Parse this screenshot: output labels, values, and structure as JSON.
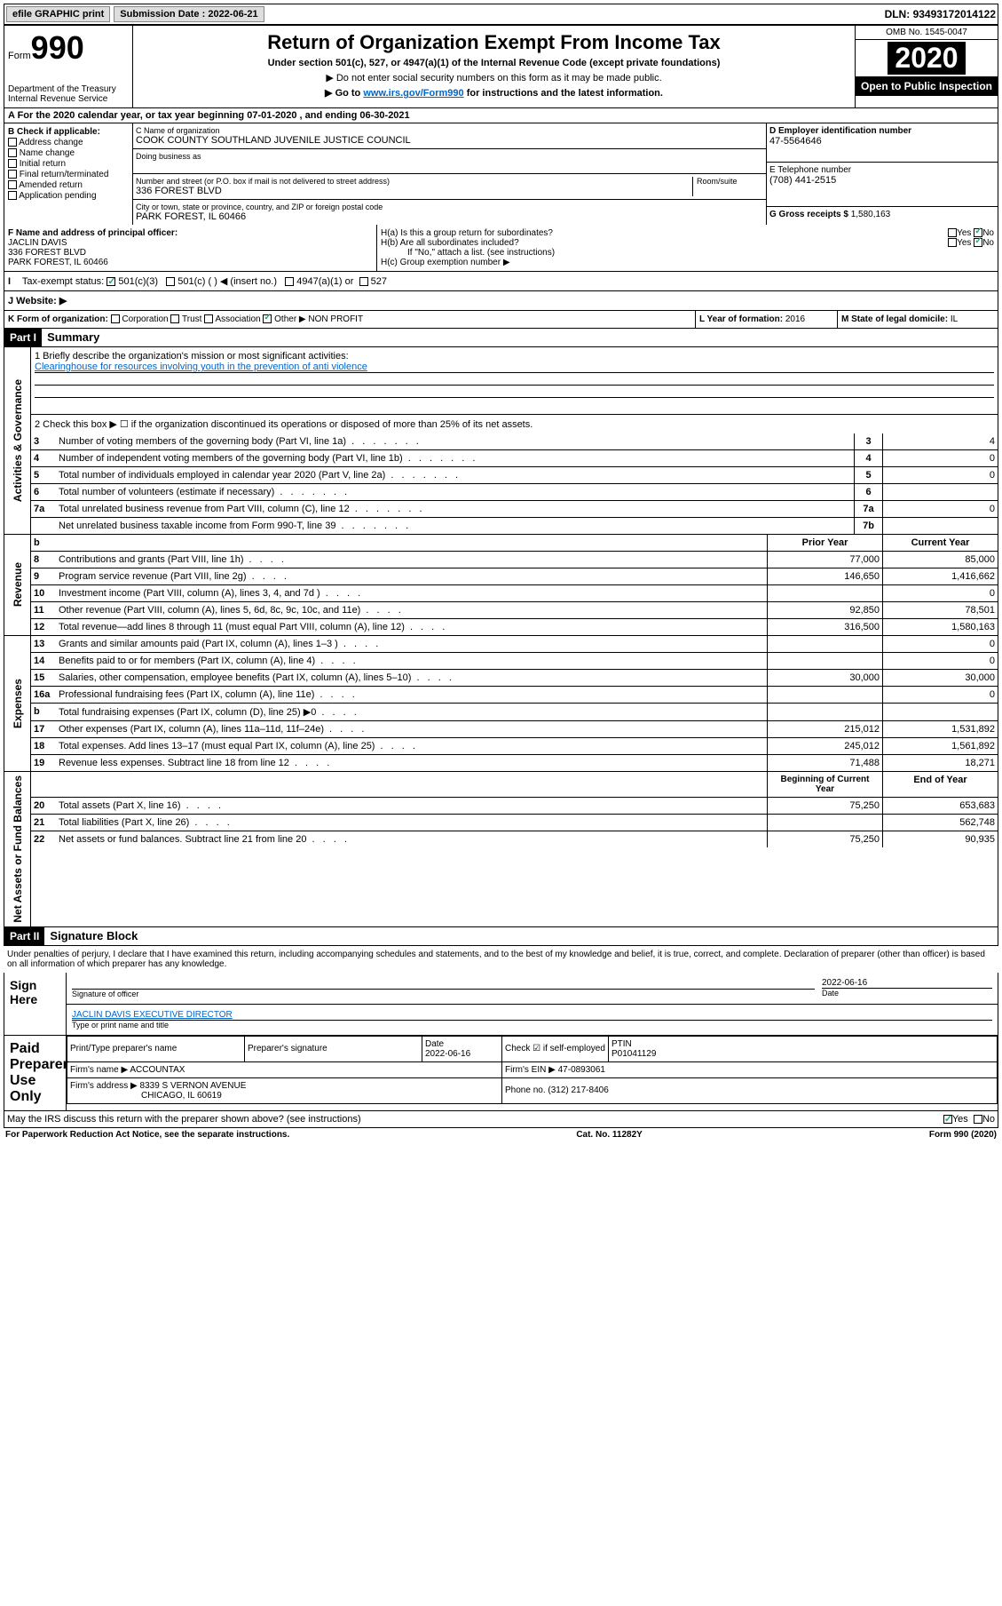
{
  "topbar": {
    "efile": "efile GRAPHIC print",
    "subdate_lbl": "Submission Date : ",
    "subdate": "2022-06-21",
    "dln_lbl": "DLN: ",
    "dln": "93493172014122"
  },
  "header": {
    "form_word": "Form",
    "form_num": "990",
    "dept": "Department of the Treasury\nInternal Revenue Service",
    "title": "Return of Organization Exempt From Income Tax",
    "sub1": "Under section 501(c), 527, or 4947(a)(1) of the Internal Revenue Code (except private foundations)",
    "sub2": "▶ Do not enter social security numbers on this form as it may be made public.",
    "sub3_pre": "▶ Go to ",
    "sub3_link": "www.irs.gov/Form990",
    "sub3_post": " for instructions and the latest information.",
    "omb": "OMB No. 1545-0047",
    "year": "2020",
    "inspect": "Open to Public Inspection"
  },
  "period": {
    "text_a": "A For the 2020 calendar year, or tax year beginning ",
    "begin": "07-01-2020",
    "text_b": " , and ending ",
    "end": "06-30-2021"
  },
  "boxB": {
    "label": "B Check if applicable:",
    "items": [
      "Address change",
      "Name change",
      "Initial return",
      "Final return/terminated",
      "Amended return",
      "Application pending"
    ]
  },
  "boxC": {
    "name_lbl": "C Name of organization",
    "name": "COOK COUNTY SOUTHLAND JUVENILE JUSTICE COUNCIL",
    "dba_lbl": "Doing business as",
    "street_lbl": "Number and street (or P.O. box if mail is not delivered to street address)",
    "room_lbl": "Room/suite",
    "street": "336 FOREST BLVD",
    "city_lbl": "City or town, state or province, country, and ZIP or foreign postal code",
    "city": "PARK FOREST, IL  60466"
  },
  "boxD": {
    "lbl": "D Employer identification number",
    "val": "47-5564646"
  },
  "boxE": {
    "lbl": "E Telephone number",
    "val": "(708) 441-2515"
  },
  "boxG": {
    "lbl": "G Gross receipts $ ",
    "val": "1,580,163"
  },
  "boxF": {
    "lbl": "F Name and address of principal officer:",
    "name": "JACLIN DAVIS",
    "addr1": "336 FOREST BLVD",
    "addr2": "PARK FOREST, IL  60466"
  },
  "boxH": {
    "ha": "H(a)  Is this a group return for subordinates?",
    "hb": "H(b)  Are all subordinates included?",
    "hb_note": "If \"No,\" attach a list. (see instructions)",
    "hc": "H(c)  Group exemption number ▶",
    "yes": "Yes",
    "no": "No"
  },
  "boxI": {
    "lbl": "Tax-exempt status:",
    "opt1": "501(c)(3)",
    "opt2": "501(c) (  ) ◀ (insert no.)",
    "opt3": "4947(a)(1) or",
    "opt4": "527"
  },
  "boxJ": {
    "lbl": "J   Website: ▶"
  },
  "boxK": {
    "lbl": "K Form of organization:",
    "corp": "Corporation",
    "trust": "Trust",
    "assoc": "Association",
    "other": "Other ▶",
    "other_val": "NON PROFIT"
  },
  "boxL": {
    "lbl": "L Year of formation: ",
    "val": "2016"
  },
  "boxM": {
    "lbl": "M State of legal domicile: ",
    "val": "IL"
  },
  "part1": {
    "hdr": "Part I",
    "title": "Summary",
    "line1_lbl": "1   Briefly describe the organization's mission or most significant activities:",
    "line1_val": "Clearinghouse for resources involving youth in the prevention of anti violence",
    "line2": "2   Check this box ▶ ☐  if the organization discontinued its operations or disposed of more than 25% of its net assets.",
    "vert_gov": "Activities & Governance",
    "vert_rev": "Revenue",
    "vert_exp": "Expenses",
    "vert_net": "Net Assets or Fund Balances",
    "prior_hdr": "Prior Year",
    "current_hdr": "Current Year",
    "begin_hdr": "Beginning of Current Year",
    "end_hdr": "End of Year",
    "rows_gov": [
      {
        "n": "3",
        "d": "Number of voting members of the governing body (Part VI, line 1a)",
        "box": "3",
        "v": "4"
      },
      {
        "n": "4",
        "d": "Number of independent voting members of the governing body (Part VI, line 1b)",
        "box": "4",
        "v": "0"
      },
      {
        "n": "5",
        "d": "Total number of individuals employed in calendar year 2020 (Part V, line 2a)",
        "box": "5",
        "v": "0"
      },
      {
        "n": "6",
        "d": "Total number of volunteers (estimate if necessary)",
        "box": "6",
        "v": ""
      },
      {
        "n": "7a",
        "d": "Total unrelated business revenue from Part VIII, column (C), line 12",
        "box": "7a",
        "v": "0"
      },
      {
        "n": "",
        "d": "Net unrelated business taxable income from Form 990-T, line 39",
        "box": "7b",
        "v": ""
      }
    ],
    "rows_rev": [
      {
        "n": "8",
        "d": "Contributions and grants (Part VIII, line 1h)",
        "p": "77,000",
        "c": "85,000"
      },
      {
        "n": "9",
        "d": "Program service revenue (Part VIII, line 2g)",
        "p": "146,650",
        "c": "1,416,662"
      },
      {
        "n": "10",
        "d": "Investment income (Part VIII, column (A), lines 3, 4, and 7d )",
        "p": "",
        "c": "0"
      },
      {
        "n": "11",
        "d": "Other revenue (Part VIII, column (A), lines 5, 6d, 8c, 9c, 10c, and 11e)",
        "p": "92,850",
        "c": "78,501"
      },
      {
        "n": "12",
        "d": "Total revenue—add lines 8 through 11 (must equal Part VIII, column (A), line 12)",
        "p": "316,500",
        "c": "1,580,163"
      }
    ],
    "rows_exp": [
      {
        "n": "13",
        "d": "Grants and similar amounts paid (Part IX, column (A), lines 1–3 )",
        "p": "",
        "c": "0"
      },
      {
        "n": "14",
        "d": "Benefits paid to or for members (Part IX, column (A), line 4)",
        "p": "",
        "c": "0"
      },
      {
        "n": "15",
        "d": "Salaries, other compensation, employee benefits (Part IX, column (A), lines 5–10)",
        "p": "30,000",
        "c": "30,000"
      },
      {
        "n": "16a",
        "d": "Professional fundraising fees (Part IX, column (A), line 11e)",
        "p": "",
        "c": "0"
      },
      {
        "n": "b",
        "d": "Total fundraising expenses (Part IX, column (D), line 25) ▶0",
        "p": "shaded",
        "c": "shaded"
      },
      {
        "n": "17",
        "d": "Other expenses (Part IX, column (A), lines 11a–11d, 11f–24e)",
        "p": "215,012",
        "c": "1,531,892"
      },
      {
        "n": "18",
        "d": "Total expenses. Add lines 13–17 (must equal Part IX, column (A), line 25)",
        "p": "245,012",
        "c": "1,561,892"
      },
      {
        "n": "19",
        "d": "Revenue less expenses. Subtract line 18 from line 12",
        "p": "71,488",
        "c": "18,271"
      }
    ],
    "rows_net": [
      {
        "n": "20",
        "d": "Total assets (Part X, line 16)",
        "p": "75,250",
        "c": "653,683"
      },
      {
        "n": "21",
        "d": "Total liabilities (Part X, line 26)",
        "p": "",
        "c": "562,748"
      },
      {
        "n": "22",
        "d": "Net assets or fund balances. Subtract line 21 from line 20",
        "p": "75,250",
        "c": "90,935"
      }
    ]
  },
  "part2": {
    "hdr": "Part II",
    "title": "Signature Block",
    "decl": "Under penalties of perjury, I declare that I have examined this return, including accompanying schedules and statements, and to the best of my knowledge and belief, it is true, correct, and complete. Declaration of preparer (other than officer) is based on all information of which preparer has any knowledge.",
    "sign_here": "Sign Here",
    "sig_officer": "Signature of officer",
    "date_lbl": "Date",
    "date_val": "2022-06-16",
    "name_title": "JACLIN DAVIS EXECUTIVE DIRECTOR",
    "type_lbl": "Type or print name and title",
    "paid": "Paid Preparer Use Only",
    "prep_name_lbl": "Print/Type preparer's name",
    "prep_sig_lbl": "Preparer's signature",
    "prep_date": "2022-06-16",
    "self_emp": "Check ☑ if self-employed",
    "ptin_lbl": "PTIN",
    "ptin": "P01041129",
    "firm_name_lbl": "Firm's name    ▶ ",
    "firm_name": "ACCOUNTAX",
    "firm_ein_lbl": "Firm's EIN ▶ ",
    "firm_ein": "47-0893061",
    "firm_addr_lbl": "Firm's address ▶ ",
    "firm_addr": "8339 S VERNON AVENUE",
    "firm_city": "CHICAGO, IL  60619",
    "phone_lbl": "Phone no. ",
    "phone": "(312) 217-8406",
    "discuss": "May the IRS discuss this return with the preparer shown above? (see instructions)",
    "yes": "Yes",
    "no": "No"
  },
  "footer": {
    "pra": "For Paperwork Reduction Act Notice, see the separate instructions.",
    "cat": "Cat. No. 11282Y",
    "form": "Form 990 (2020)"
  }
}
